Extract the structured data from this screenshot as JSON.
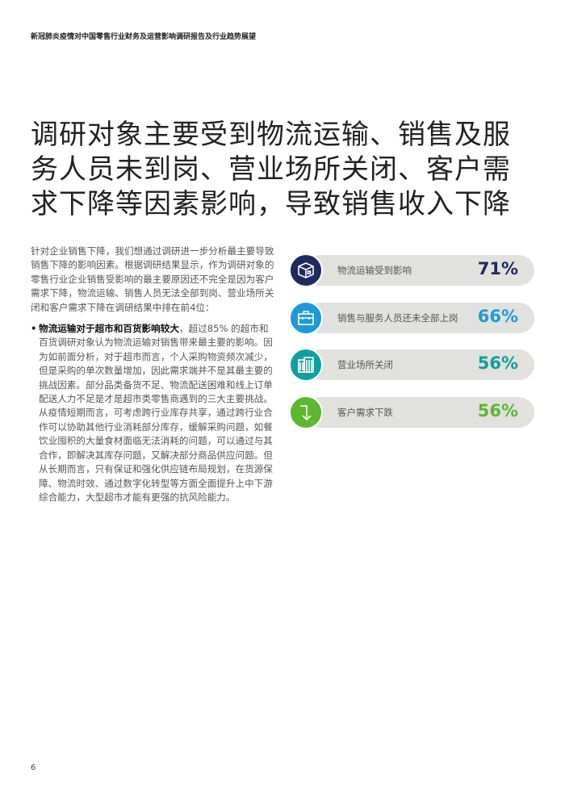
{
  "header": "新冠肺炎疫情对中国零售行业财务及运营影响调研报告及行业趋势展望",
  "title": "调研对象主要受到物流运输、销售及服务人员未到岗、营业场所关闭、客户需求下降等因素影响，导致销售收入下降",
  "intro": "针对企业销售下降，我们想通过调研进一步分析最主要导致销售下降的影响因素。根据调研结果显示，作为调研对象的零售行业企业销售受影响的最主要原因还不完全是因为客户需求下降，物流运输、销售人员无法全部到岗、营业场所关闭和客户需求下降在调研结果中排在前4位：",
  "bullet": {
    "bold": "物流运输对于超市和百货影响较大",
    "text": "，超过85% 的超市和百货调研对象认为物流运输对销售带来最主要的影响。因为如前面分析，对于超市而言，个人采购物资频次减少， 但是采购的单次数量增加，因此需求端并不是其最主要的挑战因素。部分品类备货不足、物流配送困难和线上订单配送人力不足是才是超市类零售商遇到的三大主要挑战。从疫情短期而言，可考虑跨行业库存共享，通过跨行业合作可以协助其他行业消耗部分库存，缓解采购问题，如餐饮业囤积的大量食材面临无法消耗的问题，可以通过与其合作，即解决其库存问题，又解决部分商品供应问题。但从长期而言，只有保证和强化供应链布局规划，在货源保障、物流时效、通过数字化转型等方面全面提升上中下游综合能力，大型超市才能有更强的抗风险能力。"
  },
  "stats": [
    {
      "label": "物流运输受到影响",
      "value": "71%",
      "color": "#1f2a5e",
      "icon": "package-icon"
    },
    {
      "label": "销售与服务人员还未全部上岗",
      "value": "66%",
      "color": "#1f9ad8",
      "icon": "briefcase-icon"
    },
    {
      "label": "营业场所关闭",
      "value": "56%",
      "color": "#0fa09b",
      "icon": "building-icon"
    },
    {
      "label": "客户需求下跌",
      "value": "56%",
      "color": "#5cb82f",
      "icon": "arrow-down-icon"
    }
  ],
  "page_number": "6"
}
